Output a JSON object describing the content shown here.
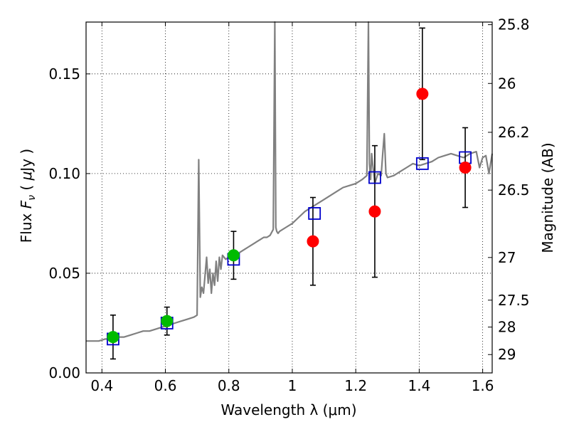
{
  "chart_data": {
    "type": "scatter",
    "xlabel": "Wavelength  λ (μm)",
    "ylabel_text": "Flux  ",
    "ylabel_symbol": "F",
    "ylabel_subscript": "ν",
    "ylabel_unit_open": "  ( ",
    "ylabel_unit_mu": "μ",
    "ylabel_unit_rest": "Jy )",
    "y2label": "Magnitude (AB)",
    "xlim": [
      0.35,
      1.63
    ],
    "ylim": [
      0.0,
      0.176
    ],
    "grid": true,
    "x_ticks": [
      0.4,
      0.6,
      0.8,
      1.0,
      1.2,
      1.4,
      1.6
    ],
    "x_tick_labels": [
      "0.4",
      "0.6",
      "0.8",
      "1",
      "1.2",
      "1.4",
      "1.6"
    ],
    "y_ticks": [
      0.0,
      0.05,
      0.1,
      0.15
    ],
    "y_tick_labels": [
      "0.00",
      "0.05",
      "0.10",
      "0.15"
    ],
    "y2_ticks": [
      {
        "label": "25.8",
        "flux": 0.1747
      },
      {
        "label": "26",
        "flux": 0.1452
      },
      {
        "label": "26.2",
        "flux": 0.1207
      },
      {
        "label": "26.5",
        "flux": 0.0917
      },
      {
        "label": "27",
        "flux": 0.0579
      },
      {
        "label": "27.5",
        "flux": 0.0365
      },
      {
        "label": "28",
        "flux": 0.023
      },
      {
        "label": "29",
        "flux": 0.0092
      }
    ],
    "series": [
      {
        "kind": "model_spectrum",
        "color": "#808080",
        "x": [
          0.35,
          0.37,
          0.39,
          0.41,
          0.43,
          0.45,
          0.47,
          0.49,
          0.51,
          0.53,
          0.55,
          0.57,
          0.59,
          0.61,
          0.63,
          0.65,
          0.67,
          0.69,
          0.7,
          0.705,
          0.71,
          0.715,
          0.72,
          0.73,
          0.735,
          0.74,
          0.745,
          0.75,
          0.755,
          0.76,
          0.765,
          0.77,
          0.775,
          0.78,
          0.79,
          0.8,
          0.81,
          0.82,
          0.83,
          0.84,
          0.85,
          0.86,
          0.87,
          0.88,
          0.89,
          0.9,
          0.91,
          0.92,
          0.93,
          0.94,
          0.945,
          0.948,
          0.951,
          0.955,
          0.96,
          0.98,
          1.0,
          1.02,
          1.04,
          1.06,
          1.08,
          1.1,
          1.12,
          1.14,
          1.16,
          1.18,
          1.2,
          1.22,
          1.235,
          1.24,
          1.243,
          1.247,
          1.25,
          1.26,
          1.27,
          1.28,
          1.285,
          1.29,
          1.295,
          1.3,
          1.32,
          1.34,
          1.36,
          1.38,
          1.4,
          1.42,
          1.44,
          1.46,
          1.48,
          1.5,
          1.52,
          1.54,
          1.56,
          1.58,
          1.59,
          1.6,
          1.61,
          1.62,
          1.63
        ],
        "y": [
          0.016,
          0.016,
          0.016,
          0.017,
          0.017,
          0.018,
          0.018,
          0.019,
          0.02,
          0.021,
          0.021,
          0.022,
          0.023,
          0.024,
          0.025,
          0.026,
          0.027,
          0.028,
          0.029,
          0.107,
          0.038,
          0.043,
          0.04,
          0.058,
          0.045,
          0.052,
          0.04,
          0.05,
          0.044,
          0.056,
          0.046,
          0.058,
          0.052,
          0.059,
          0.057,
          0.058,
          0.059,
          0.058,
          0.06,
          0.061,
          0.062,
          0.063,
          0.064,
          0.065,
          0.066,
          0.067,
          0.068,
          0.068,
          0.069,
          0.072,
          0.176,
          0.073,
          0.071,
          0.07,
          0.071,
          0.073,
          0.075,
          0.078,
          0.081,
          0.083,
          0.085,
          0.087,
          0.089,
          0.091,
          0.093,
          0.094,
          0.095,
          0.097,
          0.099,
          0.176,
          0.105,
          0.097,
          0.11,
          0.095,
          0.1,
          0.099,
          0.11,
          0.12,
          0.1,
          0.098,
          0.099,
          0.101,
          0.103,
          0.105,
          0.104,
          0.105,
          0.106,
          0.108,
          0.109,
          0.11,
          0.109,
          0.108,
          0.11,
          0.111,
          0.103,
          0.108,
          0.109,
          0.1,
          0.11
        ]
      },
      {
        "kind": "model_band_flux",
        "marker": "square",
        "color": "#0000cc",
        "x": [
          0.435,
          0.605,
          0.815,
          1.07,
          1.26,
          1.41,
          1.545
        ],
        "y": [
          0.017,
          0.025,
          0.057,
          0.08,
          0.098,
          0.105,
          0.108
        ]
      },
      {
        "kind": "observed_detection",
        "marker": "circle",
        "color": "#00bb00",
        "x": [
          0.435,
          0.605,
          0.815
        ],
        "y": [
          0.018,
          0.026,
          0.059
        ],
        "err": [
          0.011,
          0.007,
          0.012
        ]
      },
      {
        "kind": "observed_low_significance",
        "marker": "circle",
        "color": "#ff0000",
        "x": [
          1.065,
          1.26,
          1.41,
          1.545
        ],
        "y": [
          0.066,
          0.081,
          0.14,
          0.103
        ],
        "err": [
          0.022,
          0.033,
          0.033,
          0.02
        ]
      }
    ]
  }
}
